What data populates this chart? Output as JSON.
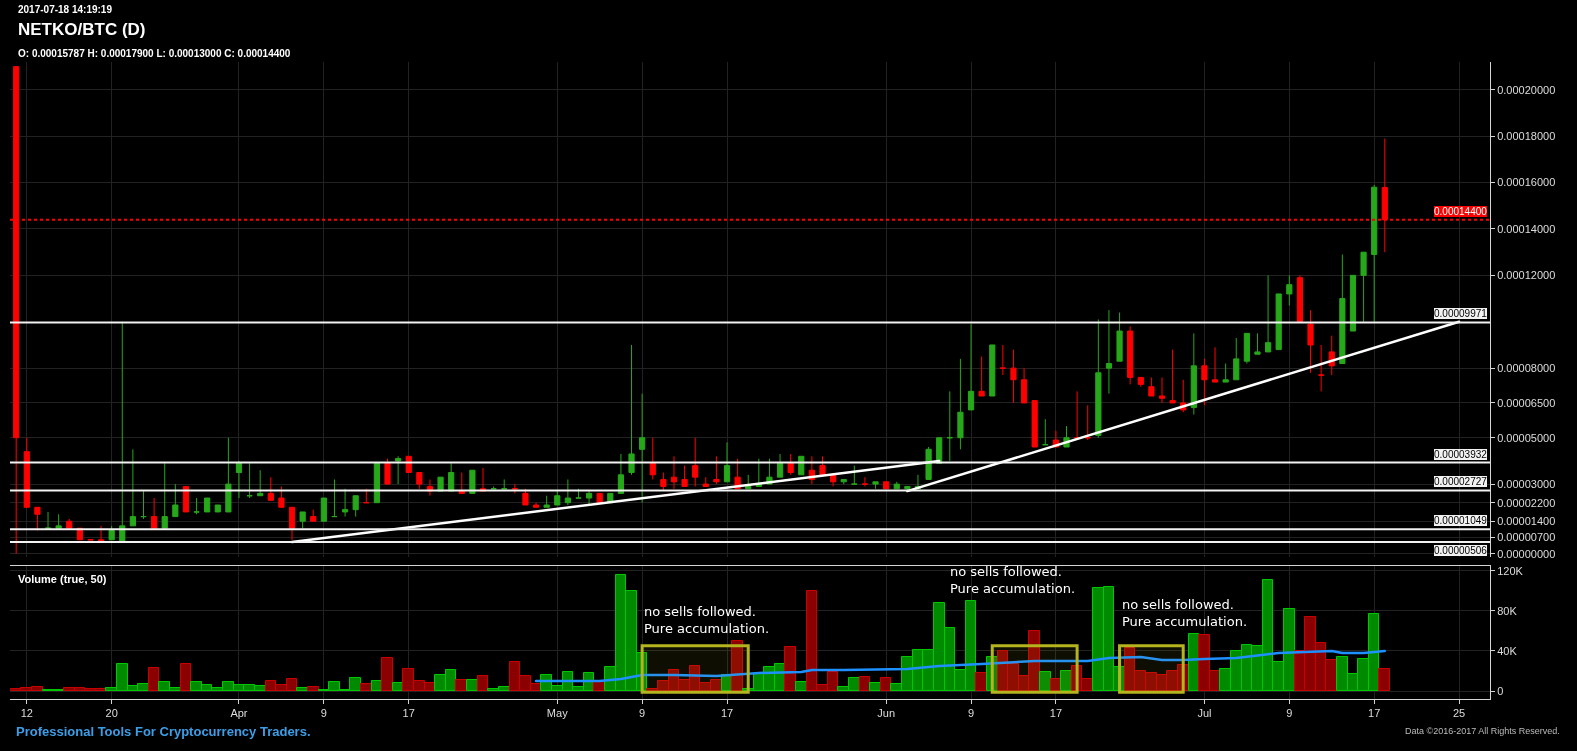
{
  "chart_data": [
    {
      "type": "candlestick",
      "title": "NETKO/BTC (D)",
      "subtitle": "O: 0.00015787 H: 0.00017900 L: 0.00013000 C: 0.00014400",
      "annotations": [
        "2017-07-18 14:19:19",
        "Professional Tools For Cryptocurrency Traders.",
        "Data ©2016-2017 All Rights Reserved."
      ],
      "x": [
        "2017-03-11",
        "2017-03-12",
        "2017-03-13",
        "2017-03-14",
        "2017-03-15",
        "2017-03-16",
        "2017-03-17",
        "2017-03-18",
        "2017-03-19",
        "2017-03-20",
        "2017-03-21",
        "2017-03-22",
        "2017-03-23",
        "2017-03-24",
        "2017-03-25",
        "2017-03-26",
        "2017-03-27",
        "2017-03-28",
        "2017-03-29",
        "2017-03-30",
        "2017-03-31",
        "2017-04-01",
        "2017-04-02",
        "2017-04-03",
        "2017-04-04",
        "2017-04-05",
        "2017-04-06",
        "2017-04-07",
        "2017-04-08",
        "2017-04-09",
        "2017-04-10",
        "2017-04-11",
        "2017-04-12",
        "2017-04-13",
        "2017-04-14",
        "2017-04-15",
        "2017-04-16",
        "2017-04-17",
        "2017-04-18",
        "2017-04-19",
        "2017-04-20",
        "2017-04-21",
        "2017-04-22",
        "2017-04-23",
        "2017-04-24",
        "2017-04-25",
        "2017-04-26",
        "2017-04-27",
        "2017-04-28",
        "2017-04-29",
        "2017-04-30",
        "2017-05-01",
        "2017-05-02",
        "2017-05-03",
        "2017-05-04",
        "2017-05-05",
        "2017-05-06",
        "2017-05-07",
        "2017-05-08",
        "2017-05-09",
        "2017-05-10",
        "2017-05-11",
        "2017-05-12",
        "2017-05-13",
        "2017-05-14",
        "2017-05-15",
        "2017-05-16",
        "2017-05-17",
        "2017-05-18",
        "2017-05-19",
        "2017-05-20",
        "2017-05-21",
        "2017-05-22",
        "2017-05-23",
        "2017-05-24",
        "2017-05-25",
        "2017-05-26",
        "2017-05-27",
        "2017-05-28",
        "2017-05-29",
        "2017-05-30",
        "2017-05-31",
        "2017-06-01",
        "2017-06-02",
        "2017-06-03",
        "2017-06-04",
        "2017-06-05",
        "2017-06-06",
        "2017-06-07",
        "2017-06-08",
        "2017-06-09",
        "2017-06-10",
        "2017-06-11",
        "2017-06-12",
        "2017-06-13",
        "2017-06-14",
        "2017-06-15",
        "2017-06-16",
        "2017-06-17",
        "2017-06-18",
        "2017-06-19",
        "2017-06-20",
        "2017-06-21",
        "2017-06-22",
        "2017-06-23",
        "2017-06-24",
        "2017-06-25",
        "2017-06-26",
        "2017-06-27",
        "2017-06-28",
        "2017-06-29",
        "2017-06-30",
        "2017-07-01",
        "2017-07-02",
        "2017-07-03",
        "2017-07-04",
        "2017-07-05",
        "2017-07-06",
        "2017-07-07",
        "2017-07-08",
        "2017-07-09",
        "2017-07-10",
        "2017-07-11",
        "2017-07-12",
        "2017-07-13",
        "2017-07-14",
        "2017-07-15",
        "2017-07-16",
        "2017-07-17",
        "2017-07-18"
      ],
      "ohlc": [
        [
          0.00021,
          0.00021,
          0,
          5e-05
        ],
        [
          4.4e-05,
          5e-05,
          2e-05,
          2e-05
        ],
        [
          2e-05,
          2e-05,
          1e-05,
          1.7e-05
        ],
        [
          1.1e-05,
          1.8e-05,
          1.1e-05,
          1.1e-05
        ],
        [
          1.1e-05,
          1.7e-05,
          1.1e-05,
          1.2e-05
        ],
        [
          1.4e-05,
          1.5e-05,
          1.1e-05,
          1.1e-05
        ],
        [
          1.1e-05,
          1.1e-05,
          6e-06,
          6e-06
        ],
        [
          6e-06,
          6e-06,
          6e-06,
          6e-06
        ],
        [
          6e-06,
          1.2e-05,
          5e-06,
          5e-06
        ],
        [
          6e-06,
          1.2e-05,
          6e-06,
          1e-05
        ],
        [
          5e-06,
          0.0001,
          5e-06,
          1.2e-05
        ],
        [
          1.2e-05,
          4.5e-05,
          1.2e-05,
          1.6e-05
        ],
        [
          1.6e-05,
          2.7e-05,
          1.5e-05,
          1.6e-05
        ],
        [
          1.6e-05,
          2.4e-05,
          1.1e-05,
          1.1e-05
        ],
        [
          1.1e-05,
          3.9e-05,
          1.1e-05,
          1.6e-05
        ],
        [
          1.6e-05,
          3e-05,
          1.6e-05,
          2.1e-05
        ],
        [
          2.9e-05,
          2.9e-05,
          1.8e-05,
          1.8e-05
        ],
        [
          1.8e-05,
          2.4e-05,
          1.7e-05,
          1.8e-05
        ],
        [
          1.8e-05,
          2.4e-05,
          1.8e-05,
          2.4e-05
        ],
        [
          1.8e-05,
          2.1e-05,
          1.8e-05,
          2.1e-05
        ],
        [
          1.8e-05,
          5e-05,
          1.8e-05,
          3e-05
        ],
        [
          3.5e-05,
          4e-05,
          2.4e-05,
          3.9e-05
        ],
        [
          2.5e-05,
          3.9e-05,
          2.4e-05,
          2.5e-05
        ],
        [
          2.5e-05,
          3.6e-05,
          2.5e-05,
          2.6e-05
        ],
        [
          2.6e-05,
          3.3e-05,
          2.3e-05,
          2.3e-05
        ],
        [
          2.4e-05,
          2.9e-05,
          2e-05,
          2e-05
        ],
        [
          2e-05,
          2e-05,
          6e-06,
          1.1e-05
        ],
        [
          1.4e-05,
          1.8e-05,
          1.1e-05,
          1.8e-05
        ],
        [
          1.6e-05,
          1.9e-05,
          1.4e-05,
          1.4e-05
        ],
        [
          1.4e-05,
          2.4e-05,
          1.4e-05,
          2.4e-05
        ],
        [
          1.6e-05,
          3.2e-05,
          1.6e-05,
          1.6e-05
        ],
        [
          1.8e-05,
          2.8e-05,
          1.6e-05,
          1.9e-05
        ],
        [
          1.9e-05,
          2.5e-05,
          1.6e-05,
          2.5e-05
        ],
        [
          2.2e-05,
          2.8e-05,
          2.2e-05,
          2.2e-05
        ],
        [
          2.2e-05,
          3.9e-05,
          2.2e-05,
          3.9e-05
        ],
        [
          3.9e-05,
          4.1e-05,
          3e-05,
          3e-05
        ],
        [
          4e-05,
          4.2e-05,
          3e-05,
          4.1e-05
        ],
        [
          4.2e-05,
          4.2e-05,
          3.5e-05,
          3.5e-05
        ],
        [
          3.5e-05,
          3.5e-05,
          2.8e-05,
          3e-05
        ],
        [
          2.9e-05,
          3.2e-05,
          2.5e-05,
          2.7e-05
        ],
        [
          2.7e-05,
          3.3e-05,
          2.7e-05,
          3.3e-05
        ],
        [
          2.7e-05,
          3.9e-05,
          2.7e-05,
          3.5e-05
        ],
        [
          2.7e-05,
          3.5e-05,
          2.6e-05,
          2.6e-05
        ],
        [
          2.6e-05,
          3.6e-05,
          2.6e-05,
          3.6e-05
        ],
        [
          2.8e-05,
          3.7e-05,
          2.7e-05,
          2.7e-05
        ],
        [
          2.8e-05,
          2.9e-05,
          2.8e-05,
          2.8e-05
        ],
        [
          2.8e-05,
          3.2e-05,
          2.8e-05,
          2.8e-05
        ],
        [
          2.8e-05,
          3e-05,
          2.6e-05,
          2.8e-05
        ],
        [
          2.6e-05,
          2.8e-05,
          2.1e-05,
          2.1e-05
        ],
        [
          2.1e-05,
          2.2e-05,
          2e-05,
          2e-05
        ],
        [
          2e-05,
          2.5e-05,
          2e-05,
          2.1e-05
        ],
        [
          2.1e-05,
          2.7e-05,
          2.1e-05,
          2.5e-05
        ],
        [
          2.2e-05,
          3.2e-05,
          2.1e-05,
          2.4e-05
        ],
        [
          2.4e-05,
          2.8e-05,
          2.4e-05,
          2.4e-05
        ],
        [
          2.4e-05,
          2.7e-05,
          2.1e-05,
          2.6e-05
        ],
        [
          2.6e-05,
          2.6e-05,
          2.2e-05,
          2.2e-05
        ],
        [
          2.2e-05,
          2.6e-05,
          2.2e-05,
          2.6e-05
        ],
        [
          2.6e-05,
          4.3e-05,
          2.6e-05,
          3.4e-05
        ],
        [
          3.5e-05,
          9e-05,
          3.4e-05,
          4.3e-05
        ],
        [
          4.5e-05,
          6.9e-05,
          2.2e-05,
          5e-05
        ],
        [
          3.9e-05,
          5e-05,
          3.2e-05,
          3.4e-05
        ],
        [
          3.2e-05,
          3.5e-05,
          2.7e-05,
          2.9e-05
        ],
        [
          3.3e-05,
          4.2e-05,
          2.8e-05,
          3.1e-05
        ],
        [
          3.2e-05,
          3.8e-05,
          2.9e-05,
          2.9e-05
        ],
        [
          3.8e-05,
          5e-05,
          2.9e-05,
          3.3e-05
        ],
        [
          3e-05,
          3.3e-05,
          2.9e-05,
          2.9e-05
        ],
        [
          3.2e-05,
          4.2e-05,
          3e-05,
          3.1e-05
        ],
        [
          3.1e-05,
          4.8e-05,
          3.1e-05,
          3.8e-05
        ],
        [
          3.3e-05,
          4.1e-05,
          2.8e-05,
          2.8e-05
        ],
        [
          2.8e-05,
          3.4e-05,
          2.8e-05,
          2.9e-05
        ],
        [
          2.9e-05,
          4.1e-05,
          2.9e-05,
          3e-05
        ],
        [
          3e-05,
          4.1e-05,
          3e-05,
          3.3e-05
        ],
        [
          3.3e-05,
          4.3e-05,
          3.3e-05,
          3.9e-05
        ],
        [
          3.9e-05,
          4.3e-05,
          3.4e-05,
          3.5e-05
        ],
        [
          3.4e-05,
          4.2e-05,
          3.4e-05,
          4.2e-05
        ],
        [
          3.6e-05,
          4.2e-05,
          3e-05,
          3.2e-05
        ],
        [
          3.8e-05,
          4.2e-05,
          3.3e-05,
          3.4e-05
        ],
        [
          3.4e-05,
          3.4e-05,
          2.9e-05,
          3.1e-05
        ],
        [
          3.1e-05,
          3.2e-05,
          3e-05,
          3.2e-05
        ],
        [
          3e-05,
          3.8e-05,
          3e-05,
          3e-05
        ],
        [
          3e-05,
          3.3e-05,
          2.9e-05,
          3e-05
        ],
        [
          3e-05,
          3.1e-05,
          2.8e-05,
          3.1e-05
        ],
        [
          3.1e-05,
          3.1e-05,
          2.8e-05,
          2.8e-05
        ],
        [
          2.8e-05,
          3.1e-05,
          2.8e-05,
          3e-05
        ],
        [
          2.8e-05,
          2.9e-05,
          2.7e-05,
          2.9e-05
        ],
        [
          2.8e-05,
          3.4e-05,
          2.8e-05,
          2.9e-05
        ],
        [
          3.2e-05,
          4.6e-05,
          3.2e-05,
          4.5e-05
        ],
        [
          3.9e-05,
          5e-05,
          3.9e-05,
          5e-05
        ],
        [
          5e-05,
          7e-05,
          4e-05,
          5e-05
        ],
        [
          5e-05,
          8.4e-05,
          4.5e-05,
          6.1e-05
        ],
        [
          6.2e-05,
          9.9e-05,
          6.2e-05,
          7e-05
        ],
        [
          7e-05,
          8.5e-05,
          6.8e-05,
          6.8e-05
        ],
        [
          6.8e-05,
          9e-05,
          6.8e-05,
          9e-05
        ],
        [
          8e-05,
          9e-05,
          7.7e-05,
          8e-05
        ],
        [
          8e-05,
          8.8e-05,
          6.5e-05,
          7.5e-05
        ],
        [
          7.5e-05,
          8e-05,
          6.5e-05,
          6.5e-05
        ],
        [
          6.6e-05,
          6.6e-05,
          4.6e-05,
          4.6e-05
        ],
        [
          4.7e-05,
          5.8e-05,
          4.7e-05,
          4.7e-05
        ],
        [
          4.9e-05,
          5.3e-05,
          4.6e-05,
          4.6e-05
        ],
        [
          4.6e-05,
          5.5e-05,
          4.6e-05,
          5e-05
        ],
        [
          5e-05,
          7e-05,
          5e-05,
          5e-05
        ],
        [
          5e-05,
          6.4e-05,
          4.9e-05,
          5e-05
        ],
        [
          5.1e-05,
          0.000101,
          5e-05,
          7.8e-05
        ],
        [
          8e-05,
          0.000105,
          6.9e-05,
          8.2e-05
        ],
        [
          8.3e-05,
          0.000104,
          8.3e-05,
          9.6e-05
        ],
        [
          9.6e-05,
          9.8e-05,
          7.3e-05,
          7.6e-05
        ],
        [
          7.6e-05,
          7.6e-05,
          7.2e-05,
          7.3e-05
        ],
        [
          7.2e-05,
          7.6e-05,
          6.8e-05,
          6.8e-05
        ],
        [
          6.8e-05,
          7.6e-05,
          6.5e-05,
          6.7e-05
        ],
        [
          6.6e-05,
          8.8e-05,
          6.5e-05,
          6.5e-05
        ],
        [
          6.5e-05,
          7.5e-05,
          6.1e-05,
          6.2e-05
        ],
        [
          6.3e-05,
          9.5e-05,
          6e-05,
          8.1e-05
        ],
        [
          8.1e-05,
          8.4e-05,
          6.4e-05,
          7.5e-05
        ],
        [
          7.5e-05,
          8.9e-05,
          7.4e-05,
          7.4e-05
        ],
        [
          7.4e-05,
          8.2e-05,
          7.4e-05,
          7.5e-05
        ],
        [
          7.5e-05,
          9.3e-05,
          7.5e-05,
          8.4e-05
        ],
        [
          8.3e-05,
          9.5e-05,
          8.2e-05,
          9.5e-05
        ],
        [
          8.6e-05,
          9.5e-05,
          8.6e-05,
          8.7e-05
        ],
        [
          8.7e-05,
          0.00012,
          8.7e-05,
          9.1e-05
        ],
        [
          8.8e-05,
          0.000112,
          8.8e-05,
          0.000112
        ],
        [
          0.000112,
          0.00012,
          0.000107,
          0.000116
        ],
        [
          0.000119,
          0.00012,
          0.0001,
          0.0001
        ],
        [
          9.9e-05,
          0.000105,
          7.8e-05,
          9e-05
        ],
        [
          7.7e-05,
          9e-05,
          7e-05,
          7.7e-05
        ],
        [
          8.7e-05,
          9.4e-05,
          7.7e-05,
          8.1e-05
        ],
        [
          8.2e-05,
          0.000129,
          8.2e-05,
          0.00011
        ],
        [
          9.6e-05,
          0.00012,
          9.6e-05,
          0.00012
        ],
        [
          0.00012,
          0.00013,
          0.0001,
          0.00013
        ],
        [
          0.000129,
          0.000159,
          0.0001,
          0.000158
        ],
        [
          0.00015787,
          0.000179,
          0.00013,
          0.000144
        ]
      ],
      "colors": [
        "#ff0000",
        "#ff0000",
        "#ff0000",
        "#26a81a",
        "#26a81a",
        "#ff0000",
        "#ff0000",
        "#ff0000",
        "#ff0000",
        "#26a81a",
        "#26a81a",
        "#26a81a",
        "#26a81a",
        "#ff0000",
        "#26a81a",
        "#26a81a",
        "#ff0000",
        "#26a81a",
        "#26a81a",
        "#26a81a",
        "#26a81a",
        "#26a81a",
        "#26a81a",
        "#26a81a",
        "#ff0000",
        "#ff0000",
        "#ff0000",
        "#26a81a",
        "#ff0000",
        "#26a81a",
        "#26a81a",
        "#26a81a",
        "#26a81a",
        "#ff0000",
        "#26a81a",
        "#ff0000",
        "#26a81a",
        "#ff0000",
        "#ff0000",
        "#ff0000",
        "#26a81a",
        "#26a81a",
        "#ff0000",
        "#26a81a",
        "#ff0000",
        "#26a81a",
        "#26a81a",
        "#ff0000",
        "#ff0000",
        "#ff0000",
        "#26a81a",
        "#26a81a",
        "#26a81a",
        "#26a81a",
        "#26a81a",
        "#ff0000",
        "#26a81a",
        "#26a81a",
        "#26a81a",
        "#26a81a",
        "#ff0000",
        "#ff0000",
        "#ff0000",
        "#ff0000",
        "#ff0000",
        "#ff0000",
        "#ff0000",
        "#26a81a",
        "#ff0000",
        "#26a81a",
        "#26a81a",
        "#26a81a",
        "#26a81a",
        "#ff0000",
        "#26a81a",
        "#ff0000",
        "#ff0000",
        "#ff0000",
        "#26a81a",
        "#26a81a",
        "#ff0000",
        "#26a81a",
        "#ff0000",
        "#26a81a",
        "#26a81a",
        "#26a81a",
        "#26a81a",
        "#26a81a",
        "#26a81a",
        "#26a81a",
        "#26a81a",
        "#ff0000",
        "#26a81a",
        "#ff0000",
        "#ff0000",
        "#ff0000",
        "#ff0000",
        "#26a81a",
        "#ff0000",
        "#26a81a",
        "#ff0000",
        "#ff0000",
        "#26a81a",
        "#26a81a",
        "#26a81a",
        "#ff0000",
        "#ff0000",
        "#ff0000",
        "#ff0000",
        "#ff0000",
        "#ff0000",
        "#26a81a",
        "#ff0000",
        "#ff0000",
        "#26a81a",
        "#26a81a",
        "#26a81a",
        "#26a81a",
        "#26a81a",
        "#26a81a",
        "#26a81a",
        "#ff0000",
        "#ff0000",
        "#ff0000",
        "#ff0000",
        "#26a81a",
        "#26a81a",
        "#26a81a",
        "#26a81a",
        "#ff0000"
      ],
      "series": [
        {
          "type": "line",
          "color": "#ffffff",
          "x": [
            "2017-04-06",
            "2017-06-06"
          ],
          "values": [
            5e-06,
            4e-05
          ]
        },
        {
          "type": "line",
          "color": "#ffffff",
          "x": [
            "2017-06-03",
            "2017-07-25"
          ],
          "values": [
            2.7e-05,
            0.0001
          ]
        }
      ],
      "ref_lines": [
        {
          "axis": "y",
          "value": 0.000144,
          "label": "0.00014400",
          "color": "#ff0000",
          "line_style": "dotted"
        },
        {
          "axis": "y",
          "value": 9.971e-05,
          "label": "0.00009971",
          "color": "#f2f2f2"
        },
        {
          "axis": "y",
          "value": 3.932e-05,
          "label": "0.00003932",
          "color": "#f2f2f2"
        },
        {
          "axis": "y",
          "value": 2.727e-05,
          "label": "0.00002727",
          "color": "#f2f2f2"
        },
        {
          "axis": "y",
          "value": 1.049e-05,
          "label": "0.00001049",
          "color": "#f2f2f2"
        },
        {
          "axis": "y",
          "value": 5.06e-06,
          "label": "0.00000506",
          "color": "#f2f2f2"
        }
      ],
      "xlim": [
        "2017-03-10T10:00",
        "2017-07-27T22:00"
      ],
      "xticks": [
        {
          "value": "2017-03-12",
          "label": null
        },
        {
          "value": "2017-03-20",
          "label": null
        },
        {
          "value": "2017-04-01",
          "label": null
        },
        {
          "value": "2017-04-09",
          "label": null
        },
        {
          "value": "2017-04-17",
          "label": null
        },
        {
          "value": "2017-05-01",
          "label": null
        },
        {
          "value": "2017-05-09",
          "label": null
        },
        {
          "value": "2017-05-17",
          "label": null
        },
        {
          "value": "2017-06-01",
          "label": null
        },
        {
          "value": "2017-06-09",
          "label": null
        },
        {
          "value": "2017-06-17",
          "label": null
        },
        {
          "value": "2017-07-01",
          "label": null
        },
        {
          "value": "2017-07-09",
          "label": null
        },
        {
          "value": "2017-07-17",
          "label": null
        },
        {
          "value": "2017-07-25",
          "label": null
        }
      ],
      "ylim": [
        -1.4e-06,
        0.000212
      ],
      "yticks": [
        {
          "value": 0.0002,
          "label": "0.00020000"
        },
        {
          "value": 0.00018,
          "label": "0.00018000"
        },
        {
          "value": 0.00016,
          "label": "0.00016000"
        },
        {
          "value": 0.00014,
          "label": "0.00014000"
        },
        {
          "value": 0.00012,
          "label": "0.00012000"
        },
        {
          "value": 8e-05,
          "label": "0.00008000"
        },
        {
          "value": 6.5e-05,
          "label": "0.00006500"
        },
        {
          "value": 5e-05,
          "label": "0.00005000"
        },
        {
          "value": 3e-05,
          "label": "0.00003000"
        },
        {
          "value": 2.2e-05,
          "label": "0.00002200"
        },
        {
          "value": 1.4e-05,
          "label": "0.00001400"
        },
        {
          "value": 7e-06,
          "label": "0.00000700"
        },
        {
          "value": 0,
          "label": "0.00000000"
        }
      ],
      "grid": true,
      "tick_labels": "y"
    },
    {
      "type": "bar",
      "title": "Volume (true, 50)",
      "annotations": [
        "no sells followed.\nPure accumulation.",
        "no sells followed.\nPure accumulation.",
        "no sells followed.\nPure accumulation."
      ],
      "x": [
        "2017-03-11",
        "2017-03-12",
        "2017-03-13",
        "2017-03-14",
        "2017-03-15",
        "2017-03-16",
        "2017-03-17",
        "2017-03-18",
        "2017-03-19",
        "2017-03-20",
        "2017-03-21",
        "2017-03-22",
        "2017-03-23",
        "2017-03-24",
        "2017-03-25",
        "2017-03-26",
        "2017-03-27",
        "2017-03-28",
        "2017-03-29",
        "2017-03-30",
        "2017-03-31",
        "2017-04-01",
        "2017-04-02",
        "2017-04-03",
        "2017-04-04",
        "2017-04-05",
        "2017-04-06",
        "2017-04-07",
        "2017-04-08",
        "2017-04-09",
        "2017-04-10",
        "2017-04-11",
        "2017-04-12",
        "2017-04-13",
        "2017-04-14",
        "2017-04-15",
        "2017-04-16",
        "2017-04-17",
        "2017-04-18",
        "2017-04-19",
        "2017-04-20",
        "2017-04-21",
        "2017-04-22",
        "2017-04-23",
        "2017-04-24",
        "2017-04-25",
        "2017-04-26",
        "2017-04-27",
        "2017-04-28",
        "2017-04-29",
        "2017-04-30",
        "2017-05-01",
        "2017-05-02",
        "2017-05-03",
        "2017-05-04",
        "2017-05-05",
        "2017-05-06",
        "2017-05-07",
        "2017-05-08",
        "2017-05-09",
        "2017-05-10",
        "2017-05-11",
        "2017-05-12",
        "2017-05-13",
        "2017-05-14",
        "2017-05-15",
        "2017-05-16",
        "2017-05-17",
        "2017-05-18",
        "2017-05-19",
        "2017-05-20",
        "2017-05-21",
        "2017-05-22",
        "2017-05-23",
        "2017-05-24",
        "2017-05-25",
        "2017-05-26",
        "2017-05-27",
        "2017-05-28",
        "2017-05-29",
        "2017-05-30",
        "2017-05-31",
        "2017-06-01",
        "2017-06-02",
        "2017-06-03",
        "2017-06-04",
        "2017-06-05",
        "2017-06-06",
        "2017-06-07",
        "2017-06-08",
        "2017-06-09",
        "2017-06-10",
        "2017-06-11",
        "2017-06-12",
        "2017-06-13",
        "2017-06-14",
        "2017-06-15",
        "2017-06-16",
        "2017-06-17",
        "2017-06-18",
        "2017-06-19",
        "2017-06-20",
        "2017-06-21",
        "2017-06-22",
        "2017-06-23",
        "2017-06-24",
        "2017-06-25",
        "2017-06-26",
        "2017-06-27",
        "2017-06-28",
        "2017-06-29",
        "2017-06-30",
        "2017-07-01",
        "2017-07-02",
        "2017-07-03",
        "2017-07-04",
        "2017-07-05",
        "2017-07-06",
        "2017-07-07",
        "2017-07-08",
        "2017-07-09",
        "2017-07-10",
        "2017-07-11",
        "2017-07-12",
        "2017-07-13",
        "2017-07-14",
        "2017-07-15",
        "2017-07-16",
        "2017-07-17",
        "2017-07-18"
      ],
      "values": [
        2000,
        3000,
        4000,
        1000,
        1000,
        3000,
        3000,
        2000,
        2000,
        3000,
        27000,
        5000,
        7000,
        23000,
        9000,
        3000,
        27000,
        9000,
        6000,
        3000,
        9000,
        6000,
        6000,
        5000,
        10000,
        6000,
        12000,
        3000,
        4000,
        1000,
        9000,
        1000,
        13000,
        7000,
        10000,
        33000,
        8000,
        22000,
        10000,
        8000,
        16000,
        21000,
        11000,
        11000,
        15000,
        2000,
        4000,
        29000,
        15000,
        7000,
        16000,
        5000,
        19000,
        4000,
        18000,
        10000,
        24000,
        116000,
        100000,
        38000,
        2000,
        10000,
        21000,
        11000,
        25000,
        8000,
        11000,
        16000,
        50000,
        2000,
        17000,
        24000,
        27000,
        44000,
        9000,
        100000,
        6000,
        19000,
        4000,
        13000,
        14000,
        8000,
        13000,
        7000,
        34000,
        41000,
        41000,
        88000,
        63000,
        21000,
        90000,
        18000,
        34000,
        40000,
        27000,
        15000,
        60000,
        19000,
        12000,
        20000,
        25000,
        12000,
        103000,
        104000,
        24000,
        43000,
        20000,
        18000,
        16000,
        20000,
        26000,
        57000,
        56000,
        20000,
        22000,
        40000,
        46000,
        45000,
        111000,
        29000,
        82000,
        40000,
        74000,
        48000,
        31000,
        34000,
        17000,
        32000,
        77000,
        22000
      ],
      "colors": [
        "#8b0000",
        "#8b0000",
        "#8b0000",
        "#008a00",
        "#008a00",
        "#8b0000",
        "#8b0000",
        "#8b0000",
        "#8b0000",
        "#008a00",
        "#008a00",
        "#008a00",
        "#008a00",
        "#8b0000",
        "#008a00",
        "#008a00",
        "#8b0000",
        "#008a00",
        "#008a00",
        "#008a00",
        "#008a00",
        "#008a00",
        "#008a00",
        "#008a00",
        "#8b0000",
        "#8b0000",
        "#8b0000",
        "#008a00",
        "#8b0000",
        "#008a00",
        "#008a00",
        "#008a00",
        "#008a00",
        "#8b0000",
        "#008a00",
        "#8b0000",
        "#008a00",
        "#8b0000",
        "#8b0000",
        "#8b0000",
        "#008a00",
        "#008a00",
        "#8b0000",
        "#008a00",
        "#8b0000",
        "#008a00",
        "#008a00",
        "#8b0000",
        "#8b0000",
        "#8b0000",
        "#008a00",
        "#008a00",
        "#008a00",
        "#008a00",
        "#008a00",
        "#8b0000",
        "#008a00",
        "#008a00",
        "#008a00",
        "#008a00",
        "#8b0000",
        "#8b0000",
        "#8b0000",
        "#8b0000",
        "#8b0000",
        "#8b0000",
        "#8b0000",
        "#008a00",
        "#8b0000",
        "#008a00",
        "#008a00",
        "#008a00",
        "#008a00",
        "#8b0000",
        "#008a00",
        "#8b0000",
        "#8b0000",
        "#8b0000",
        "#008a00",
        "#008a00",
        "#8b0000",
        "#008a00",
        "#8b0000",
        "#008a00",
        "#008a00",
        "#008a00",
        "#008a00",
        "#008a00",
        "#008a00",
        "#008a00",
        "#008a00",
        "#8b0000",
        "#008a00",
        "#8b0000",
        "#8b0000",
        "#8b0000",
        "#8b0000",
        "#008a00",
        "#8b0000",
        "#008a00",
        "#8b0000",
        "#8b0000",
        "#008a00",
        "#008a00",
        "#008a00",
        "#8b0000",
        "#8b0000",
        "#8b0000",
        "#8b0000",
        "#8b0000",
        "#8b0000",
        "#008a00",
        "#8b0000",
        "#8b0000",
        "#008a00",
        "#008a00",
        "#008a00",
        "#008a00",
        "#008a00",
        "#008a00",
        "#008a00",
        "#8b0000",
        "#8b0000",
        "#8b0000",
        "#8b0000",
        "#008a00",
        "#008a00",
        "#008a00",
        "#008a00",
        "#8b0000"
      ],
      "series": [
        {
          "type": "line",
          "color": "#1e90ff",
          "x": [
            "2017-04-29",
            "2017-05-02",
            "2017-05-05",
            "2017-05-07",
            "2017-05-09",
            "2017-05-12",
            "2017-05-16",
            "2017-05-20",
            "2017-05-24",
            "2017-05-25",
            "2017-05-28",
            "2017-06-03",
            "2017-06-06",
            "2017-06-10",
            "2017-06-15",
            "2017-06-20",
            "2017-06-22",
            "2017-06-25",
            "2017-06-27",
            "2017-06-29",
            "2017-07-01",
            "2017-07-04",
            "2017-07-08",
            "2017-07-13",
            "2017-07-14",
            "2017-07-16",
            "2017-07-18"
          ],
          "values": [
            10000,
            10000,
            10000,
            12000,
            16000,
            16000,
            15000,
            18000,
            19000,
            21000,
            21000,
            22000,
            25000,
            27000,
            30000,
            30000,
            33000,
            34000,
            31000,
            31000,
            32000,
            33000,
            38000,
            40000,
            38000,
            38000,
            40000
          ]
        }
      ],
      "bands": [
        {
          "axis": "x",
          "from": "2017-05-09",
          "to": "2017-05-19",
          "color": "#b4b41e"
        },
        {
          "axis": "x",
          "from": "2017-06-11",
          "to": "2017-06-19",
          "color": "#b4b41e"
        },
        {
          "axis": "x",
          "from": "2017-06-23",
          "to": "2017-06-29",
          "color": "#b4b41e"
        }
      ],
      "xlim": [
        "2017-03-10T10:00",
        "2017-07-27T22:00"
      ],
      "xticks": [
        {
          "value": "2017-03-12",
          "label": "12"
        },
        {
          "value": "2017-03-20",
          "label": "20"
        },
        {
          "value": "2017-04-01",
          "label": "Apr"
        },
        {
          "value": "2017-04-09",
          "label": "9"
        },
        {
          "value": "2017-04-17",
          "label": "17"
        },
        {
          "value": "2017-05-01",
          "label": "May"
        },
        {
          "value": "2017-05-09",
          "label": "9"
        },
        {
          "value": "2017-05-17",
          "label": "17"
        },
        {
          "value": "2017-06-01",
          "label": "Jun"
        },
        {
          "value": "2017-06-09",
          "label": "9"
        },
        {
          "value": "2017-06-17",
          "label": "17"
        },
        {
          "value": "2017-07-01",
          "label": "Jul"
        },
        {
          "value": "2017-07-09",
          "label": "9"
        },
        {
          "value": "2017-07-17",
          "label": "17"
        },
        {
          "value": "2017-07-25",
          "label": "25"
        }
      ],
      "ylim": [
        -8000,
        125000
      ],
      "yticks": [
        0,
        {
          "value": 40000,
          "label": "40K"
        },
        {
          "value": 80000,
          "label": "80K"
        },
        {
          "value": 120000,
          "label": "120K"
        }
      ],
      "grid": true
    }
  ]
}
